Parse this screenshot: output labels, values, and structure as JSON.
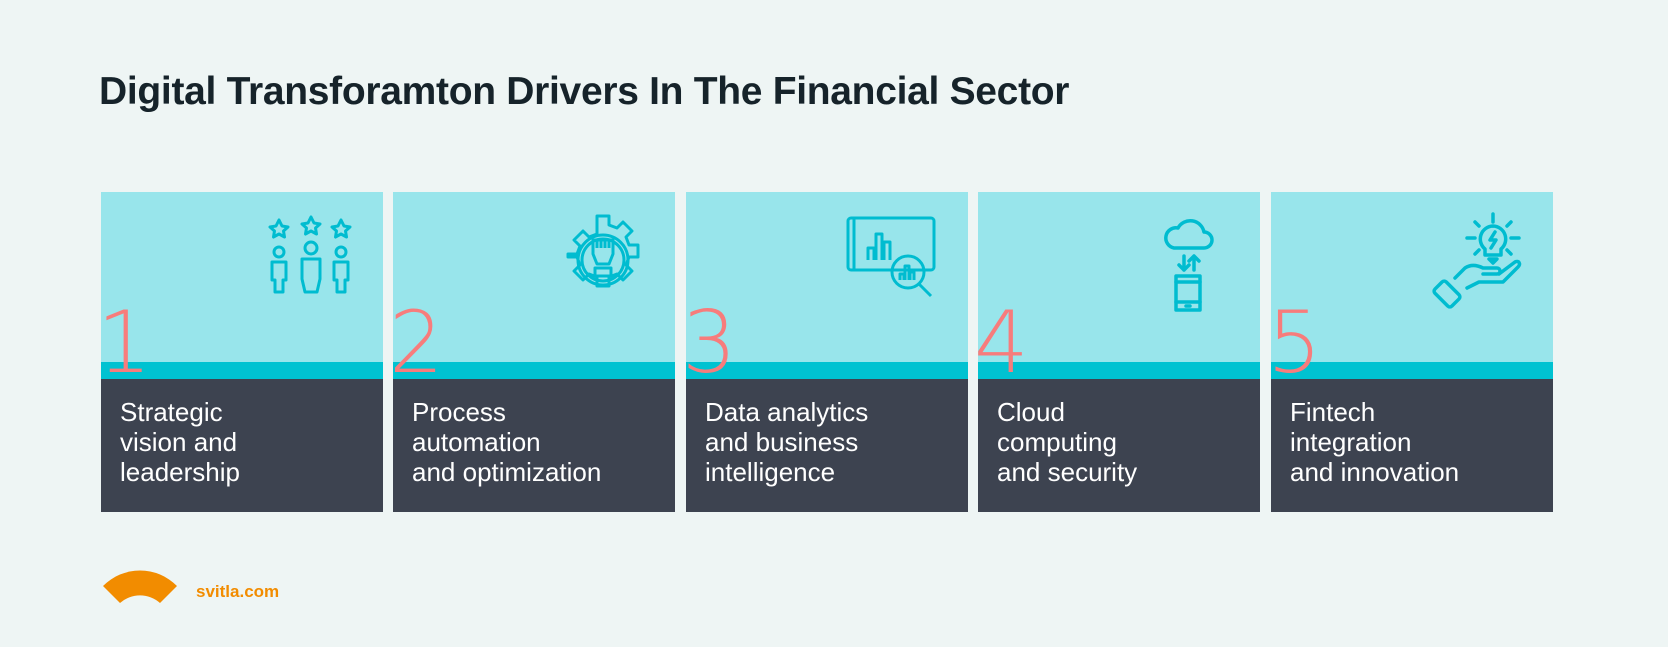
{
  "title": "Digital Transforamton Drivers In The Financial Sector",
  "colors": {
    "background": "#eef5f4",
    "card_top": "#98e5eb",
    "accent_bar": "#00c2d1",
    "card_bottom": "#3d4350",
    "number": "#f77c7c",
    "icon": "#00bcd0",
    "brand": "#f28c00"
  },
  "cards": [
    {
      "number": "1",
      "lines": [
        "Strategic",
        "vision and",
        "leadership"
      ],
      "icon": "people-stars-icon"
    },
    {
      "number": "2",
      "lines": [
        "Process",
        "automation",
        "and optimization"
      ],
      "icon": "gear-fist-icon"
    },
    {
      "number": "3",
      "lines": [
        "Data analytics",
        "and business",
        "intelligence"
      ],
      "icon": "chart-magnifier-icon"
    },
    {
      "number": "4",
      "lines": [
        "Cloud",
        "computing",
        "and security"
      ],
      "icon": "cloud-phone-icon"
    },
    {
      "number": "5",
      "lines": [
        "Fintech",
        "integration",
        "and innovation"
      ],
      "icon": "hand-lightbulb-icon"
    }
  ],
  "footer": {
    "site": "svitla.com"
  }
}
